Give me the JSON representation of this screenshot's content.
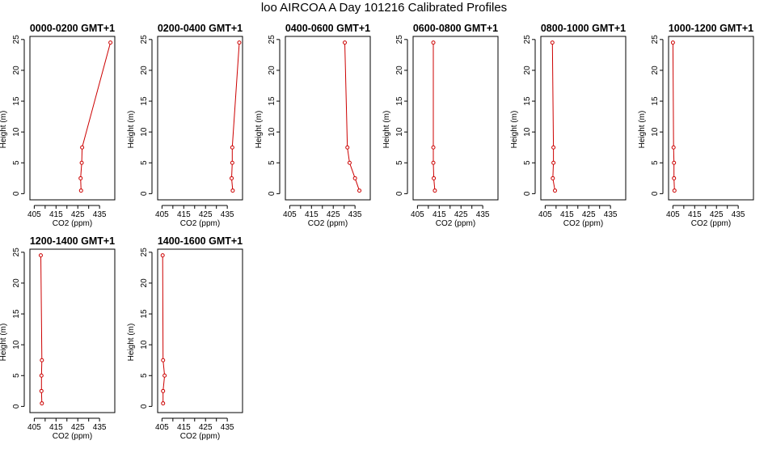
{
  "figure": {
    "title": "loo AIRCOA A  Day 101216  Calibrated Profiles"
  },
  "colors": {
    "series": "#cc0000",
    "axes": "#000000",
    "background": "#ffffff"
  },
  "chart_data": [
    {
      "type": "line",
      "title": "0000-0200 GMT+1",
      "xlabel": "CO2 (ppm)",
      "ylabel": "Height (m)",
      "xlim": [
        403,
        442
      ],
      "ylim": [
        -1,
        25.5
      ],
      "xticks": [
        405,
        410,
        415,
        420,
        425,
        430,
        435
      ],
      "xtick_labels": [
        "405",
        "",
        "415",
        "",
        "425",
        "",
        "435"
      ],
      "yticks": [
        0,
        5,
        10,
        15,
        20,
        25
      ],
      "grid": false,
      "points": [
        {
          "x": 426.5,
          "y": 0.5
        },
        {
          "x": 426.3,
          "y": 2.5
        },
        {
          "x": 426.8,
          "y": 5
        },
        {
          "x": 427.0,
          "y": 7.5
        },
        {
          "x": 440.0,
          "y": 24.5
        }
      ]
    },
    {
      "type": "line",
      "title": "0200-0400 GMT+1",
      "xlabel": "CO2 (ppm)",
      "ylabel": "Height (m)",
      "xlim": [
        403,
        442
      ],
      "ylim": [
        -1,
        25.5
      ],
      "xticks": [
        405,
        410,
        415,
        420,
        425,
        430,
        435
      ],
      "xtick_labels": [
        "405",
        "",
        "415",
        "",
        "425",
        "",
        "435"
      ],
      "yticks": [
        0,
        5,
        10,
        15,
        20,
        25
      ],
      "grid": false,
      "points": [
        {
          "x": 437.5,
          "y": 0.5
        },
        {
          "x": 437.0,
          "y": 2.5
        },
        {
          "x": 437.3,
          "y": 5
        },
        {
          "x": 437.3,
          "y": 7.5
        },
        {
          "x": 440.5,
          "y": 24.5
        }
      ]
    },
    {
      "type": "line",
      "title": "0400-0600 GMT+1",
      "xlabel": "CO2 (ppm)",
      "ylabel": "Height (m)",
      "xlim": [
        403,
        442
      ],
      "ylim": [
        -1,
        25.5
      ],
      "xticks": [
        405,
        410,
        415,
        420,
        425,
        430,
        435
      ],
      "xtick_labels": [
        "405",
        "",
        "415",
        "",
        "425",
        "",
        "435"
      ],
      "yticks": [
        0,
        5,
        10,
        15,
        20,
        25
      ],
      "grid": false,
      "points": [
        {
          "x": 437.0,
          "y": 0.5
        },
        {
          "x": 435.0,
          "y": 2.5
        },
        {
          "x": 432.5,
          "y": 5
        },
        {
          "x": 431.5,
          "y": 7.5
        },
        {
          "x": 430.3,
          "y": 24.5
        }
      ]
    },
    {
      "type": "line",
      "title": "0600-0800 GMT+1",
      "xlabel": "CO2 (ppm)",
      "ylabel": "Height (m)",
      "xlim": [
        403,
        442
      ],
      "ylim": [
        -1,
        25.5
      ],
      "xticks": [
        405,
        410,
        415,
        420,
        425,
        430,
        435
      ],
      "xtick_labels": [
        "405",
        "",
        "415",
        "",
        "425",
        "",
        "435"
      ],
      "yticks": [
        0,
        5,
        10,
        15,
        20,
        25
      ],
      "grid": false,
      "points": [
        {
          "x": 413.0,
          "y": 0.5
        },
        {
          "x": 412.5,
          "y": 2.5
        },
        {
          "x": 412.3,
          "y": 5
        },
        {
          "x": 412.3,
          "y": 7.5
        },
        {
          "x": 412.3,
          "y": 24.5
        }
      ]
    },
    {
      "type": "line",
      "title": "0800-1000 GMT+1",
      "xlabel": "CO2 (ppm)",
      "ylabel": "Height (m)",
      "xlim": [
        403,
        442
      ],
      "ylim": [
        -1,
        25.5
      ],
      "xticks": [
        405,
        410,
        415,
        420,
        425,
        430,
        435
      ],
      "xtick_labels": [
        "405",
        "",
        "415",
        "",
        "425",
        "",
        "435"
      ],
      "yticks": [
        0,
        5,
        10,
        15,
        20,
        25
      ],
      "grid": false,
      "points": [
        {
          "x": 409.5,
          "y": 0.5
        },
        {
          "x": 408.5,
          "y": 2.5
        },
        {
          "x": 408.8,
          "y": 5
        },
        {
          "x": 408.8,
          "y": 7.5
        },
        {
          "x": 408.3,
          "y": 24.5
        }
      ]
    },
    {
      "type": "line",
      "title": "1000-1200 GMT+1",
      "xlabel": "CO2 (ppm)",
      "ylabel": "Height (m)",
      "xlim": [
        403,
        442
      ],
      "ylim": [
        -1,
        25.5
      ],
      "xticks": [
        405,
        410,
        415,
        420,
        425,
        430,
        435
      ],
      "xtick_labels": [
        "405",
        "",
        "415",
        "",
        "425",
        "",
        "435"
      ],
      "yticks": [
        0,
        5,
        10,
        15,
        20,
        25
      ],
      "grid": false,
      "points": [
        {
          "x": 405.7,
          "y": 0.5
        },
        {
          "x": 405.5,
          "y": 2.5
        },
        {
          "x": 405.5,
          "y": 5
        },
        {
          "x": 405.3,
          "y": 7.5
        },
        {
          "x": 405.0,
          "y": 24.5
        }
      ]
    },
    {
      "type": "line",
      "title": "1200-1400 GMT+1",
      "xlabel": "CO2 (ppm)",
      "ylabel": "Height (m)",
      "xlim": [
        403,
        442
      ],
      "ylim": [
        -1,
        25.5
      ],
      "xticks": [
        405,
        410,
        415,
        420,
        425,
        430,
        435
      ],
      "xtick_labels": [
        "405",
        "",
        "415",
        "",
        "425",
        "",
        "435"
      ],
      "yticks": [
        0,
        5,
        10,
        15,
        20,
        25
      ],
      "grid": false,
      "points": [
        {
          "x": 408.5,
          "y": 0.5
        },
        {
          "x": 408.3,
          "y": 2.5
        },
        {
          "x": 408.3,
          "y": 5
        },
        {
          "x": 408.5,
          "y": 7.5
        },
        {
          "x": 408.0,
          "y": 24.5
        }
      ]
    },
    {
      "type": "line",
      "title": "1400-1600 GMT+1",
      "xlabel": "CO2 (ppm)",
      "ylabel": "Height (m)",
      "xlim": [
        403,
        442
      ],
      "ylim": [
        -1,
        25.5
      ],
      "xticks": [
        405,
        410,
        415,
        420,
        425,
        430,
        435
      ],
      "xtick_labels": [
        "405",
        "",
        "415",
        "",
        "425",
        "",
        "435"
      ],
      "yticks": [
        0,
        5,
        10,
        15,
        20,
        25
      ],
      "grid": false,
      "points": [
        {
          "x": 405.5,
          "y": 0.5
        },
        {
          "x": 405.5,
          "y": 2.5
        },
        {
          "x": 406.2,
          "y": 5
        },
        {
          "x": 405.5,
          "y": 7.5
        },
        {
          "x": 405.3,
          "y": 24.5
        }
      ]
    }
  ]
}
